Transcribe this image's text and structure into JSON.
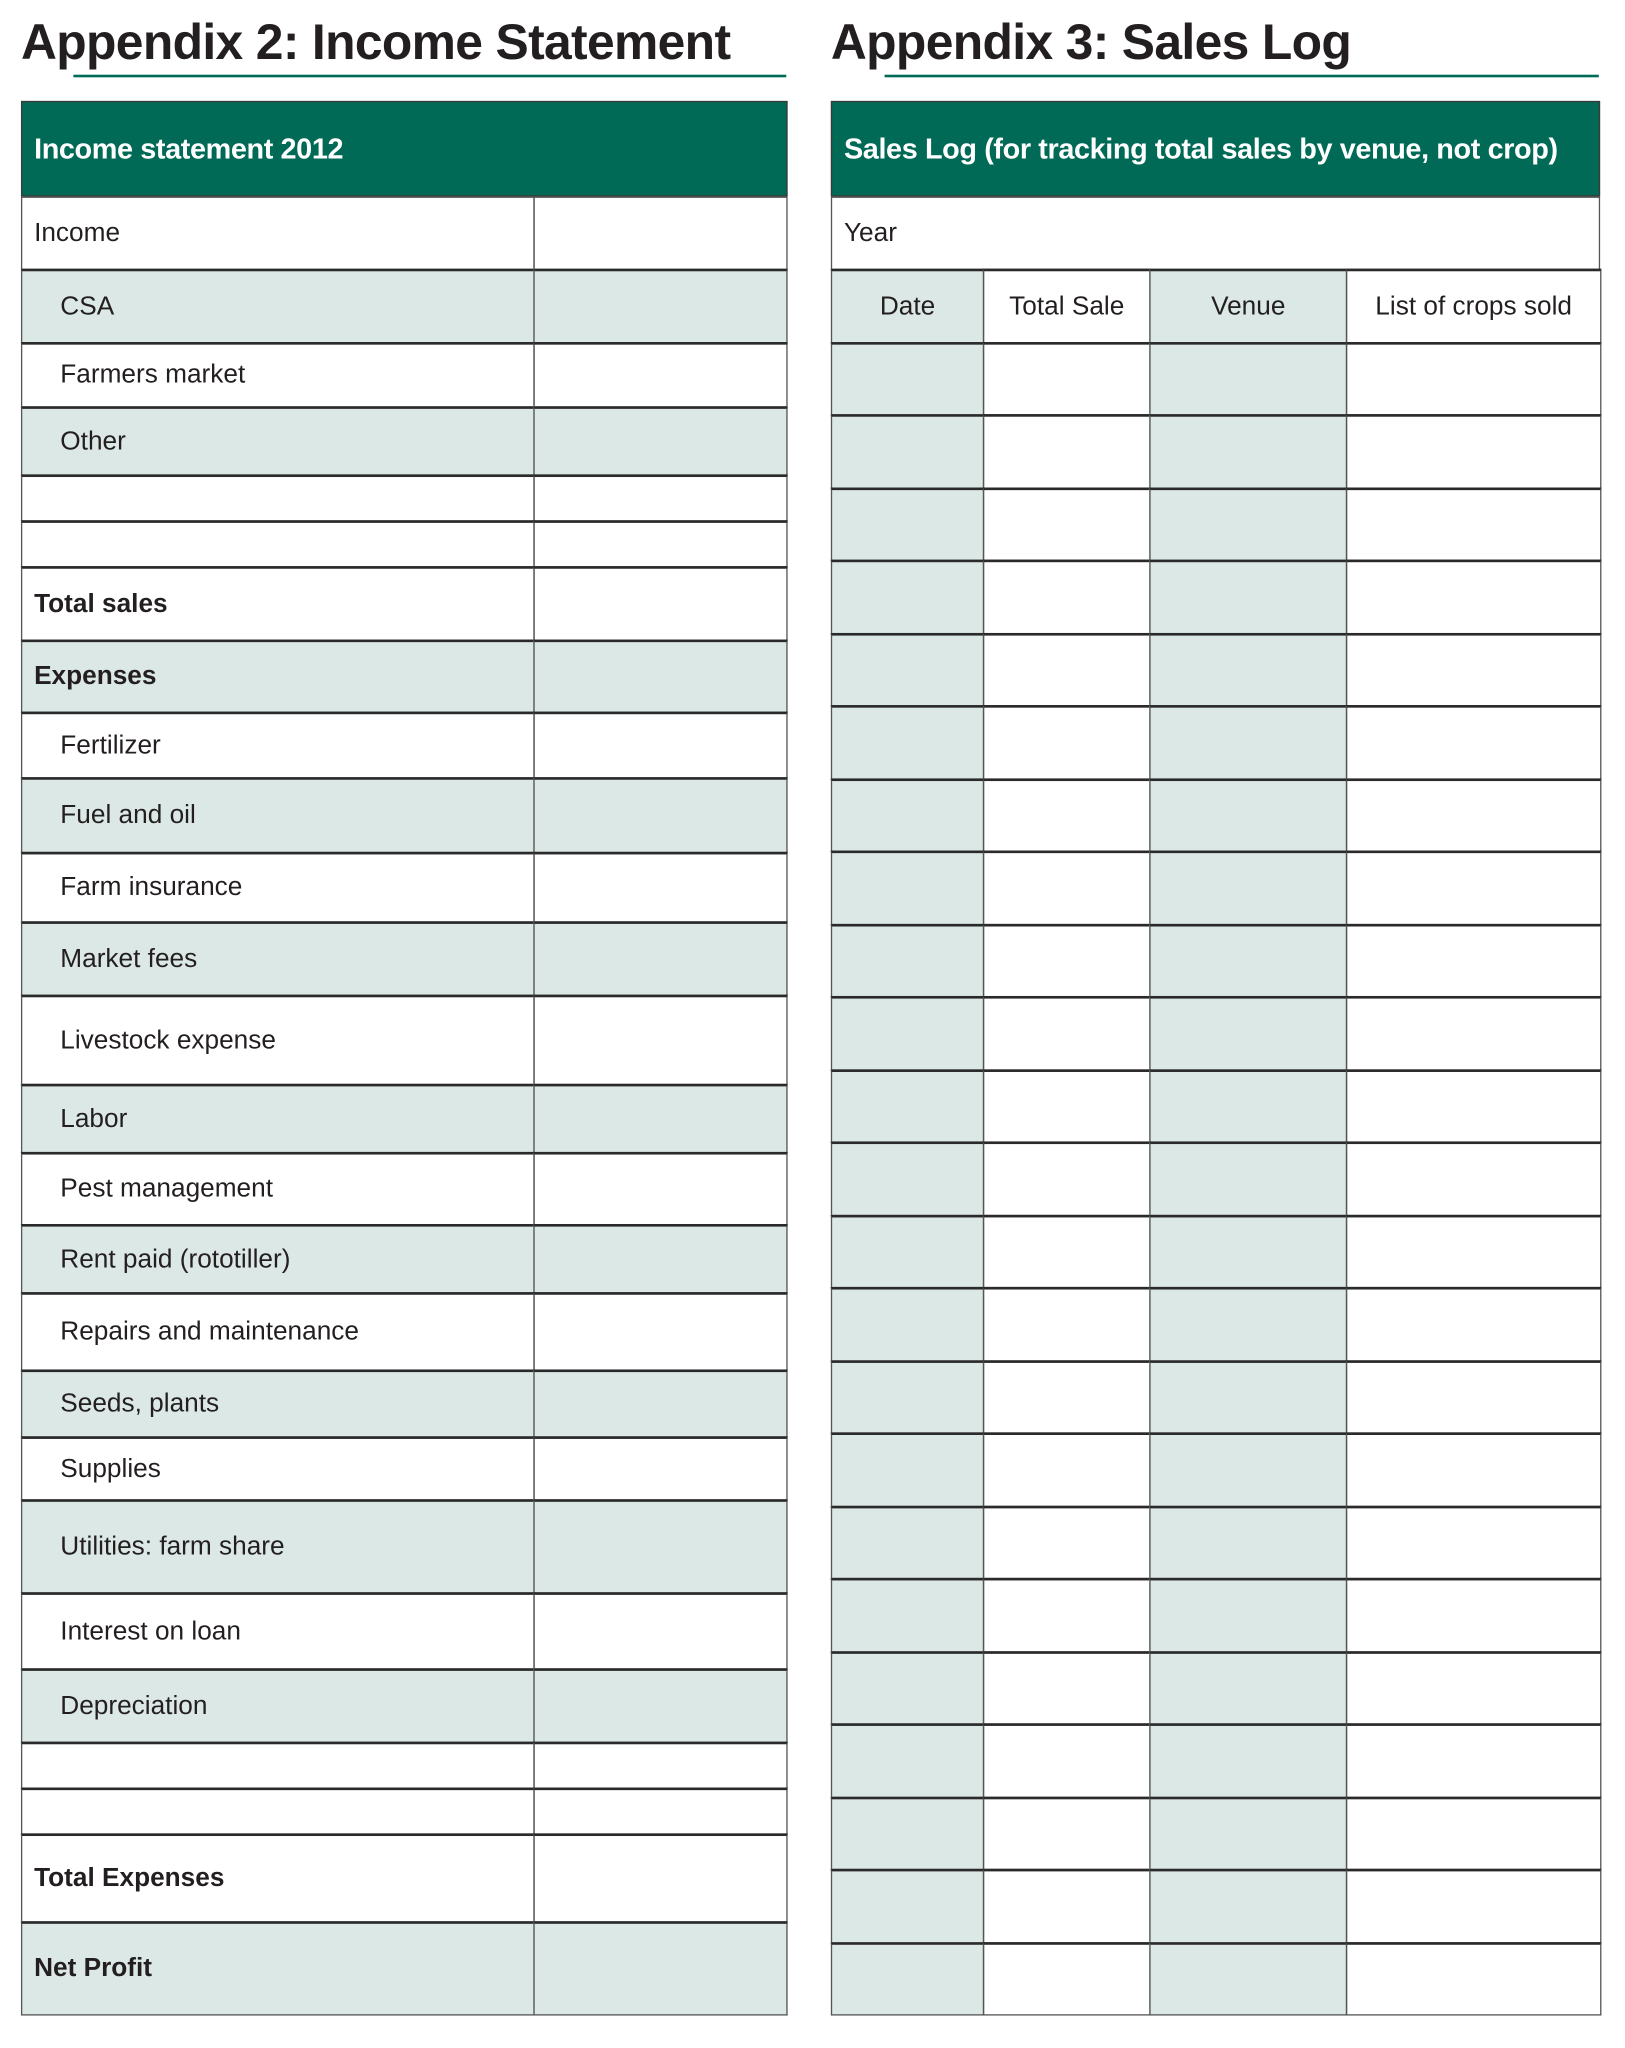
{
  "income": {
    "page_title": "Appendix 2: Income Statement",
    "table_title": "Income statement 2012",
    "rows": [
      {
        "label": "Income",
        "indent": false,
        "bold": false,
        "shaded": false
      },
      {
        "label": "CSA",
        "indent": true,
        "bold": false,
        "shaded": true
      },
      {
        "label": "Farmers market",
        "indent": true,
        "bold": false,
        "shaded": false
      },
      {
        "label": "Other",
        "indent": true,
        "bold": false,
        "shaded": true
      },
      {
        "label": "",
        "indent": false,
        "bold": false,
        "shaded": false
      },
      {
        "label": "",
        "indent": false,
        "bold": false,
        "shaded": false
      },
      {
        "label": "Total sales",
        "indent": false,
        "bold": true,
        "shaded": false
      },
      {
        "label": "Expenses",
        "indent": false,
        "bold": true,
        "shaded": true
      },
      {
        "label": "Fertilizer",
        "indent": true,
        "bold": false,
        "shaded": false
      },
      {
        "label": "Fuel and oil",
        "indent": true,
        "bold": false,
        "shaded": true
      },
      {
        "label": "Farm insurance",
        "indent": true,
        "bold": false,
        "shaded": false
      },
      {
        "label": "Market fees",
        "indent": true,
        "bold": false,
        "shaded": true
      },
      {
        "label": "Livestock expense",
        "indent": true,
        "bold": false,
        "shaded": false
      },
      {
        "label": "Labor",
        "indent": true,
        "bold": false,
        "shaded": true
      },
      {
        "label": "Pest management",
        "indent": true,
        "bold": false,
        "shaded": false
      },
      {
        "label": "Rent paid  (rototiller)",
        "indent": true,
        "bold": false,
        "shaded": true
      },
      {
        "label": "Repairs and maintenance",
        "indent": true,
        "bold": false,
        "shaded": false
      },
      {
        "label": "Seeds, plants",
        "indent": true,
        "bold": false,
        "shaded": true
      },
      {
        "label": "Supplies",
        "indent": true,
        "bold": false,
        "shaded": false
      },
      {
        "label": "Utilities: farm share",
        "indent": true,
        "bold": false,
        "shaded": true
      },
      {
        "label": "Interest on loan",
        "indent": true,
        "bold": false,
        "shaded": false
      },
      {
        "label": "Depreciation",
        "indent": true,
        "bold": false,
        "shaded": true
      },
      {
        "label": "",
        "indent": false,
        "bold": false,
        "shaded": false
      },
      {
        "label": "",
        "indent": false,
        "bold": false,
        "shaded": false
      },
      {
        "label": "Total Expenses",
        "indent": false,
        "bold": true,
        "shaded": false
      },
      {
        "label": "Net Profit",
        "indent": false,
        "bold": true,
        "shaded": true
      }
    ]
  },
  "sales": {
    "page_title": "Appendix 3: Sales Log",
    "table_title": "Sales Log (for tracking total sales by venue, not crop)",
    "year_label": "Year",
    "columns": [
      "Date",
      "Total Sale",
      "Venue",
      "List of crops sold"
    ],
    "shaded_columns": [
      true,
      false,
      true,
      false
    ],
    "empty_rows": 23
  },
  "colors": {
    "header_green": "#006a56",
    "row_shade": "#dce8e5",
    "underline": "#006b57"
  }
}
